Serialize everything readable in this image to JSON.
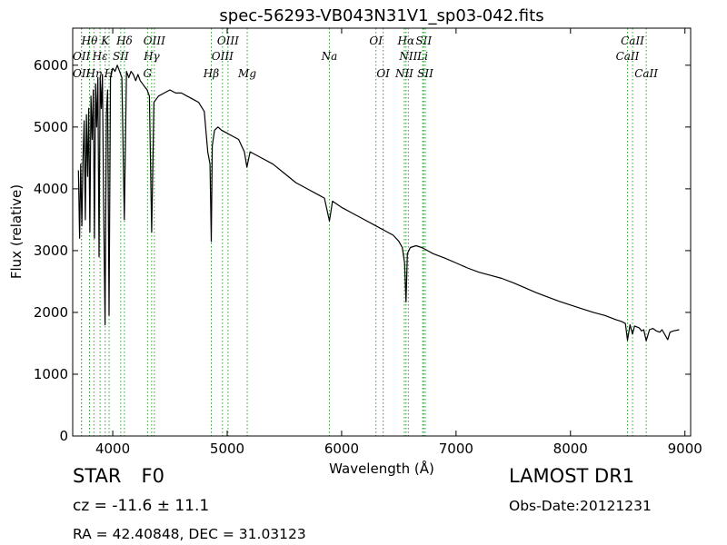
{
  "chart_data": {
    "type": "line",
    "title": "spec-56293-VB043N31V1_sp03-042.fits",
    "xlabel": "Wavelength (Å)",
    "ylabel": "Flux (relative)",
    "xlim": [
      3650,
      9050
    ],
    "ylim": [
      0,
      6600
    ],
    "xticks": [
      4000,
      5000,
      6000,
      7000,
      8000,
      9000
    ],
    "yticks": [
      0,
      1000,
      2000,
      3000,
      4000,
      5000,
      6000
    ],
    "grid": false,
    "line_color": "#000000",
    "marker_color": "#2ca02c",
    "series": [
      {
        "x": [
          3700,
          3710,
          3720,
          3730,
          3740,
          3750,
          3760,
          3770,
          3780,
          3790,
          3800,
          3810,
          3820,
          3830,
          3840,
          3850,
          3860,
          3870,
          3880,
          3890,
          3900,
          3910,
          3920,
          3933,
          3945,
          3955,
          3968,
          3980,
          3990,
          4000,
          4020,
          4040,
          4060,
          4080,
          4101,
          4120,
          4140,
          4160,
          4180,
          4200,
          4220,
          4240,
          4260,
          4280,
          4300,
          4320,
          4340,
          4360,
          4380,
          4400,
          4450,
          4500,
          4550,
          4600,
          4650,
          4700,
          4750,
          4800,
          4830,
          4850,
          4861,
          4870,
          4890,
          4920,
          4950,
          5000,
          5050,
          5100,
          5150,
          5172,
          5200,
          5250,
          5300,
          5400,
          5500,
          5600,
          5700,
          5800,
          5850,
          5893,
          5920,
          6000,
          6100,
          6200,
          6300,
          6400,
          6450,
          6500,
          6530,
          6550,
          6563,
          6575,
          6600,
          6650,
          6700,
          6750,
          6800,
          6900,
          7000,
          7100,
          7200,
          7300,
          7400,
          7500,
          7600,
          7700,
          7800,
          7900,
          8000,
          8100,
          8200,
          8300,
          8400,
          8450,
          8480,
          8498,
          8520,
          8542,
          8560,
          8600,
          8620,
          8640,
          8662,
          8690,
          8720,
          8750,
          8780,
          8800,
          8850,
          8870,
          8900,
          8950
        ],
        "y": [
          4300,
          3200,
          4400,
          3400,
          4450,
          5100,
          3500,
          5200,
          4200,
          5300,
          3300,
          5500,
          4800,
          5600,
          3200,
          5700,
          5000,
          5800,
          2900,
          5800,
          5300,
          5850,
          3800,
          1800,
          5200,
          5600,
          1950,
          5800,
          5900,
          5950,
          5900,
          6000,
          5900,
          5800,
          3500,
          5900,
          5800,
          5900,
          5850,
          5750,
          5850,
          5750,
          5700,
          5650,
          5600,
          5500,
          3300,
          5400,
          5450,
          5500,
          5550,
          5600,
          5550,
          5550,
          5500,
          5450,
          5400,
          5250,
          4600,
          4400,
          3150,
          4700,
          4950,
          5000,
          4950,
          4900,
          4850,
          4800,
          4600,
          4350,
          4600,
          4550,
          4500,
          4400,
          4250,
          4100,
          4000,
          3900,
          3850,
          3480,
          3800,
          3700,
          3600,
          3500,
          3400,
          3300,
          3250,
          3150,
          3050,
          2800,
          2170,
          2950,
          3050,
          3080,
          3050,
          3000,
          2950,
          2880,
          2800,
          2720,
          2650,
          2600,
          2550,
          2480,
          2400,
          2320,
          2250,
          2180,
          2120,
          2060,
          2000,
          1950,
          1880,
          1850,
          1820,
          1550,
          1800,
          1650,
          1780,
          1750,
          1700,
          1720,
          1540,
          1720,
          1740,
          1700,
          1680,
          1720,
          1560,
          1680,
          1700,
          1720
        ]
      }
    ],
    "markers": [
      {
        "label": "Hθ",
        "x": 3797,
        "row": 0
      },
      {
        "label": "K",
        "x": 3934,
        "row": 0
      },
      {
        "label": "Hδ",
        "x": 4102,
        "row": 0
      },
      {
        "label": "OIII",
        "x": 4363,
        "row": 0
      },
      {
        "label": "OIII",
        "x": 5007,
        "row": 0
      },
      {
        "label": "OI",
        "x": 6300,
        "row": 0
      },
      {
        "label": "Hα",
        "x": 6563,
        "row": 0
      },
      {
        "label": "SII",
        "x": 6717,
        "row": 0
      },
      {
        "label": "CaII",
        "x": 8542,
        "row": 0
      },
      {
        "label": "OII",
        "x": 3727,
        "row": 1
      },
      {
        "label": "Hε",
        "x": 3889,
        "row": 1
      },
      {
        "label": "SII",
        "x": 4070,
        "row": 1
      },
      {
        "label": "Hγ",
        "x": 4340,
        "row": 1
      },
      {
        "label": "OIII",
        "x": 4959,
        "row": 1
      },
      {
        "label": "Na",
        "x": 5893,
        "row": 1
      },
      {
        "label": "NII",
        "x": 6583,
        "row": 1
      },
      {
        "label": "Li",
        "x": 6708,
        "row": 1
      },
      {
        "label": "CaII",
        "x": 8498,
        "row": 1
      },
      {
        "label": "OII",
        "x": 3727,
        "row": 2
      },
      {
        "label": "Hη",
        "x": 3835,
        "row": 2
      },
      {
        "label": "H",
        "x": 3968,
        "row": 2
      },
      {
        "label": "G",
        "x": 4304,
        "row": 2
      },
      {
        "label": "Hβ",
        "x": 4861,
        "row": 2
      },
      {
        "label": "Mg",
        "x": 5175,
        "row": 2
      },
      {
        "label": "OI",
        "x": 6363,
        "row": 2
      },
      {
        "label": "NII",
        "x": 6548,
        "row": 2
      },
      {
        "label": "SII",
        "x": 6731,
        "row": 2
      },
      {
        "label": "CaII",
        "x": 8662,
        "row": 2
      }
    ]
  },
  "info": {
    "object_class": "STAR",
    "subclass": "F0",
    "survey": "LAMOST DR1",
    "cz": "cz = -11.6 ± 11.1",
    "obs_date": "Obs-Date:20121231",
    "radec": "RA = 42.40848, DEC = 31.03123"
  }
}
